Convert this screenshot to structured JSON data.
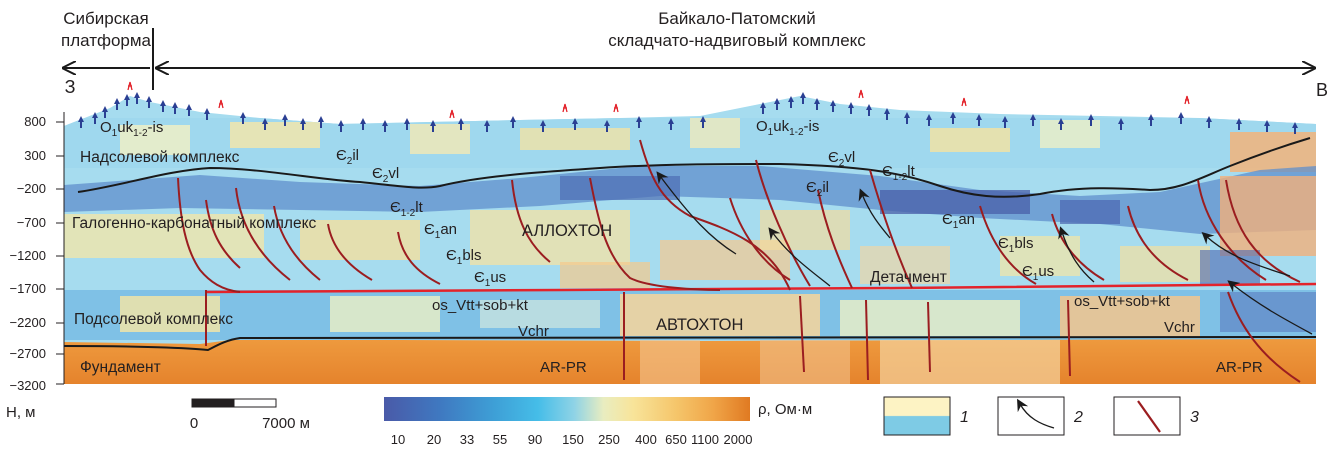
{
  "header": {
    "left_region": [
      "Сибирская",
      "платформа"
    ],
    "right_region": [
      "Байкало-Патомский",
      "складчато-надвиговый комплекс"
    ],
    "west_label": "З",
    "east_label": "В"
  },
  "axis": {
    "title": "Н, м",
    "ticks": [
      "800",
      "300",
      "−200",
      "−700",
      "−1200",
      "−1700",
      "−2200",
      "−2700",
      "−3200"
    ]
  },
  "section_labels": {
    "supra_salt": "Надсолевой комплекс",
    "halogen_carbonate": "Галогенно-карбонатный комплекс",
    "sub_salt": "Подсолевой комплекс",
    "basement": "Фундамент",
    "allochthon": "АЛЛОХТОН",
    "autochthon": "АВТОХТОН",
    "detachment": "Детачмент"
  },
  "strata": {
    "ord_left": {
      "main": "O",
      "sub1": "1",
      "mid": "uk",
      "sub2": "1-2",
      "tail": "-is"
    },
    "ord_right": {
      "main": "O",
      "sub1": "1",
      "mid": "uk",
      "sub2": "1-2",
      "tail": "-is"
    },
    "c2il_top": {
      "main": "Є",
      "sub": "2",
      "tail": "il"
    },
    "c2vl_left": {
      "main": "Є",
      "sub": "2",
      "tail": "vl"
    },
    "c12lt_left": {
      "main": "Є",
      "sub": "1-2",
      "tail": "lt"
    },
    "c1an_left": {
      "main": "Є",
      "sub": "1",
      "tail": "an"
    },
    "c1bls_left": {
      "main": "Є",
      "sub": "1",
      "tail": "bls"
    },
    "c1us_left": {
      "main": "Є",
      "sub": "1",
      "tail": "us"
    },
    "c2vl_right": {
      "main": "Є",
      "sub": "2",
      "tail": "vl"
    },
    "c12lt_right": {
      "main": "Є",
      "sub": "1-2",
      "tail": "lt"
    },
    "c2il_right": {
      "main": "Є",
      "sub": "2",
      "tail": "il"
    },
    "c1an_right": {
      "main": "Є",
      "sub": "1",
      "tail": "an"
    },
    "c1bls_right": {
      "main": "Є",
      "sub": "1",
      "tail": "bls"
    },
    "c1us_right": {
      "main": "Є",
      "sub": "1",
      "tail": "us"
    },
    "os_left": "os_Vtt+sob+kt",
    "os_right": "os_Vtt+sob+kt",
    "vchr_left": "Vchr",
    "vchr_right": "Vchr",
    "arpr_left": "AR-PR",
    "arpr_right": "AR-PR"
  },
  "scale_bar": {
    "start": "0",
    "end": "7000 м"
  },
  "color_scale": {
    "unit": "ρ, Ом·м",
    "ticks": [
      "10",
      "20",
      "33",
      "55",
      "90",
      "150",
      "250",
      "400",
      "650",
      "1100",
      "2000"
    ],
    "colors": [
      "#4a5aa8",
      "#3f78c0",
      "#3e9fd6",
      "#45bde8",
      "#8fd3e6",
      "#e9edc0",
      "#f8e49a",
      "#f5c56a",
      "#f0a548",
      "#e98a30",
      "#e07a22"
    ]
  },
  "legend": {
    "item1": "1",
    "item2": "2",
    "item3": "3"
  },
  "colors": {
    "fault": "#9b1d20",
    "detachment": "#e3232b",
    "boundary": "#1a1a1a",
    "station": "#2a3f93"
  }
}
